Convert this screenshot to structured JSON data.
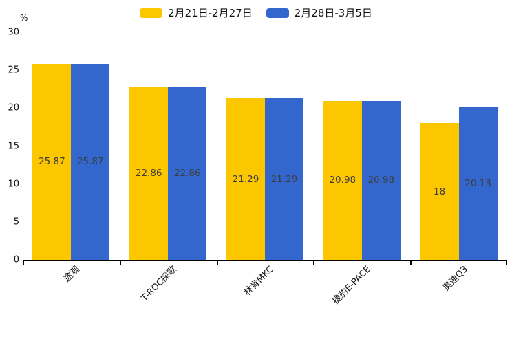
{
  "chart_data": {
    "type": "bar",
    "title": "",
    "ylabel": "%",
    "xlabel": "",
    "ylim": [
      0,
      30
    ],
    "yticks": [
      0,
      5,
      10,
      15,
      20,
      25,
      30
    ],
    "grid": false,
    "legend_position": "top-center",
    "categories": [
      "途观",
      "T-ROC探歌",
      "林肯MKC",
      "捷豹E-PACE",
      "奥迪Q3"
    ],
    "series": [
      {
        "name": "2月21日-2月27日",
        "color": "#FDC700",
        "values": [
          25.87,
          22.86,
          21.29,
          20.98,
          18
        ]
      },
      {
        "name": "2月28日-3月5日",
        "color": "#3367CD",
        "values": [
          25.87,
          22.86,
          21.29,
          20.98,
          20.13
        ]
      }
    ],
    "value_labels": {
      "position": "inside-center",
      "color": "#3d3d3d"
    }
  },
  "colors": {
    "background": "#ffffff",
    "axis": "#000000",
    "tick_label": "#111111"
  }
}
